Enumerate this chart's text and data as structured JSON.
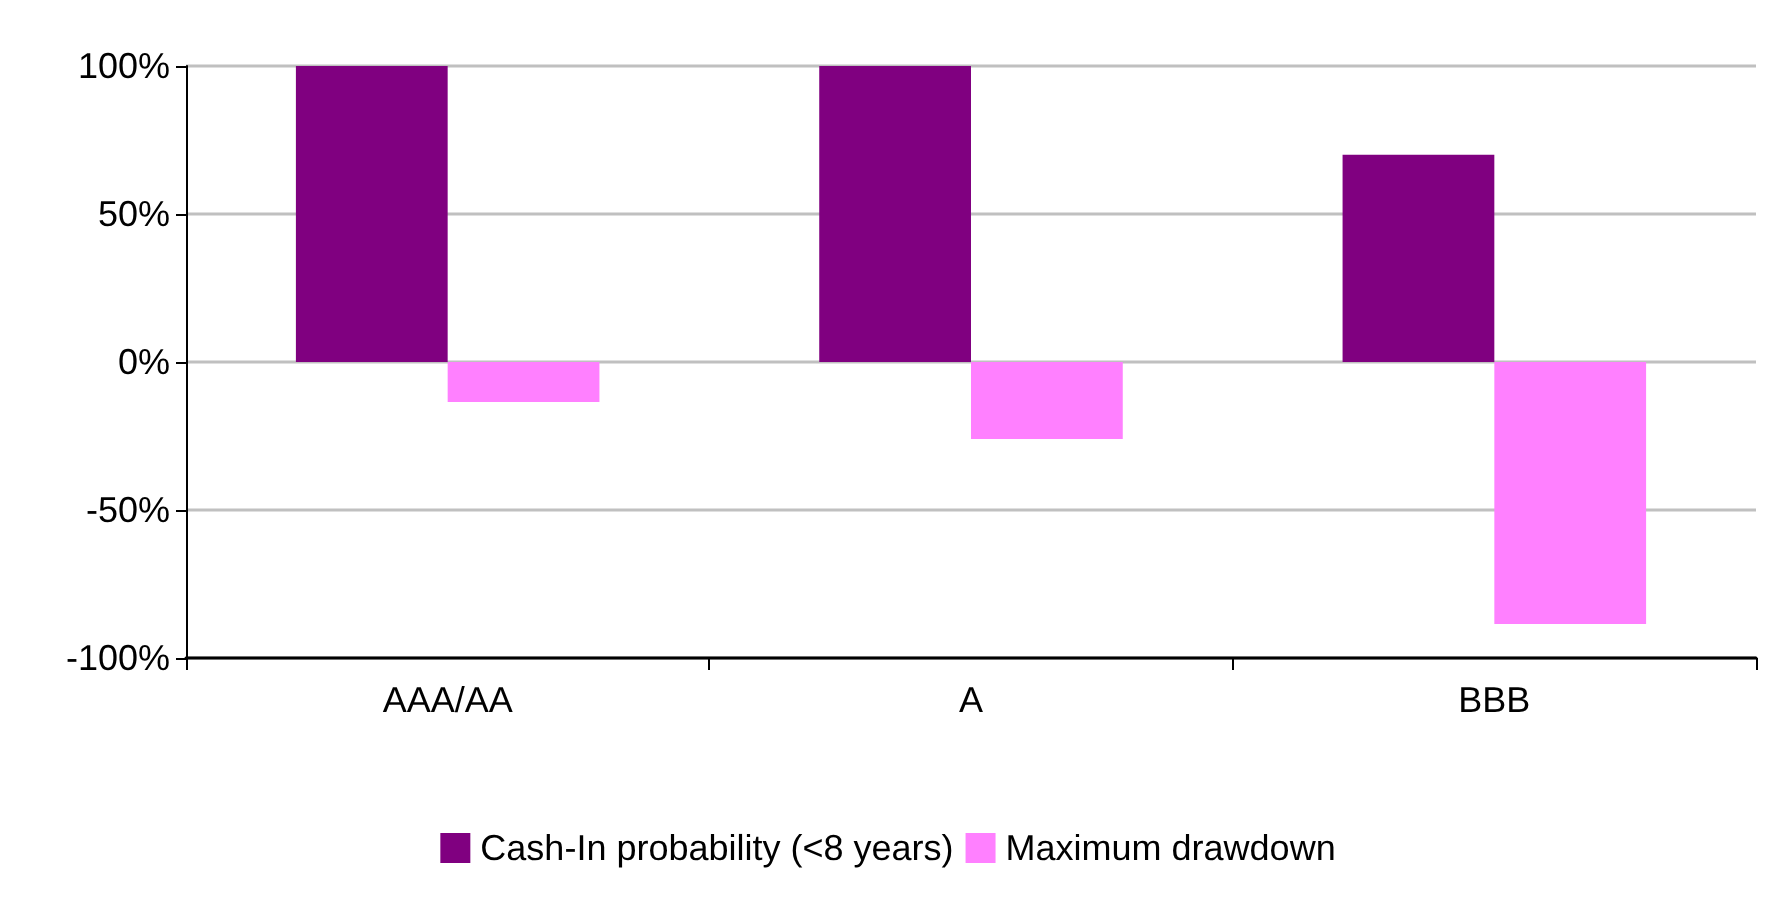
{
  "chart_data": {
    "type": "bar",
    "categories": [
      "AAA/AA",
      "A",
      "BBB"
    ],
    "series": [
      {
        "name": "Cash-In probability (<8 years)",
        "color": "#800080",
        "values": [
          100,
          100,
          70
        ]
      },
      {
        "name": "Maximum drawdown",
        "color": "#ff80ff",
        "values": [
          -13.5,
          -26,
          -88.5
        ]
      }
    ],
    "ylim": [
      -100,
      100
    ],
    "yticks": [
      {
        "value": -100,
        "label": "-100%"
      },
      {
        "value": -50,
        "label": "-50%"
      },
      {
        "value": 0,
        "label": "0%"
      },
      {
        "value": 50,
        "label": "50%"
      },
      {
        "value": 100,
        "label": "100%"
      }
    ],
    "grid": "y",
    "legend": "bottom"
  }
}
